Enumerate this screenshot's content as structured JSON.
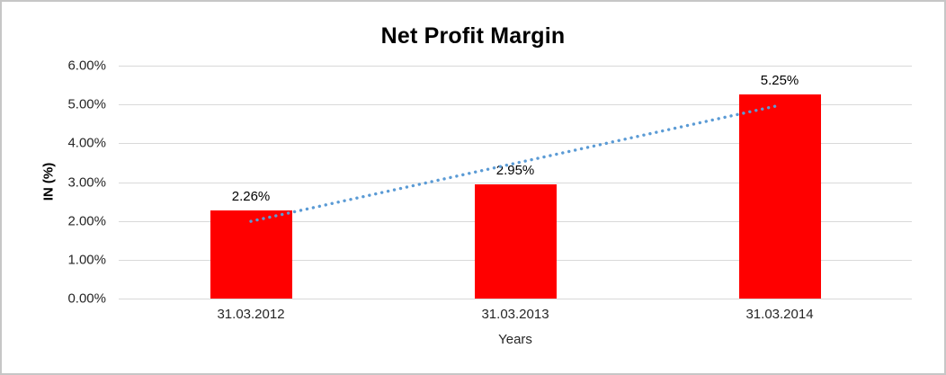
{
  "chart_data": {
    "type": "bar",
    "title": "Net Profit Margin",
    "categories": [
      "31.03.2012",
      "31.03.2013",
      "31.03.2014"
    ],
    "values": [
      2.26,
      2.95,
      5.25
    ],
    "data_labels": [
      "2.26%",
      "2.95%",
      "5.25%"
    ],
    "xlabel": "Years",
    "ylabel": "IN (%)",
    "ylim": [
      0,
      6
    ],
    "ytick_step": 1,
    "ytick_labels": [
      "0.00%",
      "1.00%",
      "2.00%",
      "3.00%",
      "4.00%",
      "5.00%",
      "6.00%"
    ],
    "bar_color": "#ff0000",
    "gridline_color": "#d9d9d9",
    "legend": "none",
    "grid": "horizontal",
    "trendline": {
      "kind": "linear-dotted",
      "color": "#5b9bd5",
      "start_value": 1.99,
      "end_value": 4.98
    }
  }
}
